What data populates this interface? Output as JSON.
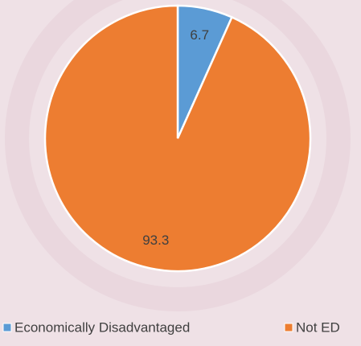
{
  "chart_data": {
    "type": "pie",
    "categories": [
      "Economically Disadvantaged",
      "Not ED"
    ],
    "values": [
      6.7,
      93.3
    ],
    "colors": [
      "#5b9bd5",
      "#ed7d31"
    ],
    "legend": "bottom"
  }
}
